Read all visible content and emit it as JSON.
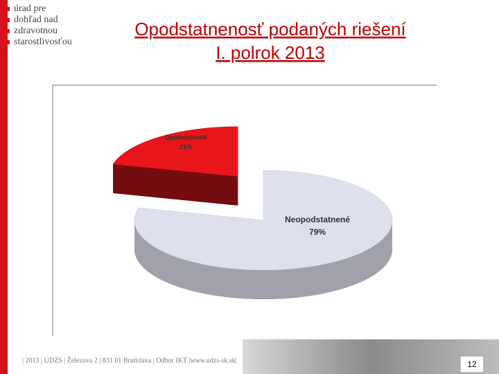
{
  "logo": [
    "úrad pre",
    "dohľad nad",
    "zdravotnou",
    "starostlivosťou"
  ],
  "footer": "| 2013 | UDZS | Železova 2 | 831 01 Bratislava | Odbor IKT |www.udzs-sk.sk|",
  "page_number": "12",
  "chart_data": {
    "type": "pie",
    "title": "Opodstatnenosť podaných riešení",
    "subtitle": "I. polrok 2013",
    "categories": [
      "Opodstatnené",
      "Neopodstatnené"
    ],
    "values": [
      21,
      79
    ],
    "value_labels": [
      "21%",
      "79%"
    ],
    "colors": [
      "#e8151b",
      "#dfe0ee"
    ]
  }
}
